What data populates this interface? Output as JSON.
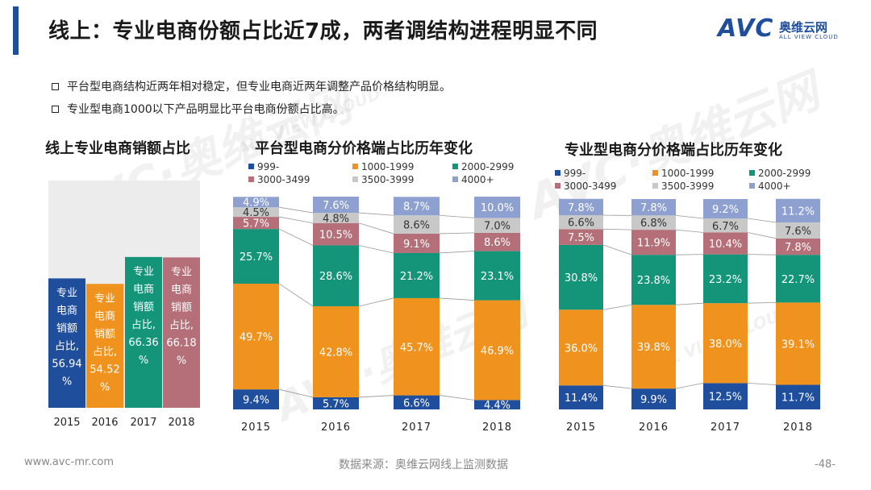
{
  "header": {
    "title": "线上：专业电商份额占比近7成，两者调结构进程明显不同",
    "logo": {
      "brand": "AVC",
      "name_cn": "奥维云网",
      "name_en": "ALL VIEW CLOUD"
    }
  },
  "bullets": [
    "平台型电商结构近两年相对稳定，但专业电商近两年调整产品价格结构明显。",
    "专业型电商1000以下产品明显比平台电商份额占比高。"
  ],
  "watermarks": [
    "AVC·奥维云网",
    "ALL VIEW CLOUD"
  ],
  "colors": {
    "title_bar": "#1f4e9c",
    "999-": "#1f4e9c",
    "1000-1999": "#f0931e",
    "2000-2999": "#14957a",
    "3000-3499": "#b56f79",
    "3500-3999": "#c8c8c8",
    "4000+": "#8ea0d0",
    "bar_background": "#ececec",
    "left_2015": "#1f4e9c",
    "left_2016": "#f0931e",
    "left_2017": "#14957a",
    "left_2018": "#b56f79"
  },
  "chart_data": [
    {
      "id": "share",
      "type": "bar",
      "title": "线上专业电商销额占比",
      "categories": [
        "2015",
        "2016",
        "2017",
        "2018"
      ],
      "values": [
        56.94,
        54.52,
        66.36,
        66.18
      ],
      "ylim": [
        0,
        100
      ],
      "labels": [
        "专业电商销额占比,56.94%",
        "专业电商销额占比,54.52%",
        "专业电商销额占比,66.36%",
        "专业电商销额占比,66.18%"
      ]
    },
    {
      "id": "platform",
      "type": "bar",
      "stacked": true,
      "title": "平台型电商分价格端占比历年变化",
      "categories": [
        "2015",
        "2016",
        "2017",
        "2018"
      ],
      "legend_position": "top",
      "series": [
        {
          "name": "999-",
          "values": [
            9.4,
            5.7,
            6.6,
            4.4
          ]
        },
        {
          "name": "1000-1999",
          "values": [
            49.7,
            42.8,
            45.7,
            46.9
          ]
        },
        {
          "name": "2000-2999",
          "values": [
            25.7,
            28.6,
            21.2,
            23.1
          ]
        },
        {
          "name": "3000-3499",
          "values": [
            5.7,
            10.5,
            9.1,
            8.6
          ]
        },
        {
          "name": "3500-3999",
          "values": [
            4.5,
            4.8,
            8.6,
            7.0
          ]
        },
        {
          "name": "4000+",
          "values": [
            4.9,
            7.6,
            8.7,
            10.0
          ]
        }
      ]
    },
    {
      "id": "specialist",
      "type": "bar",
      "stacked": true,
      "title": "专业型电商分价格端占比历年变化",
      "categories": [
        "2015",
        "2016",
        "2017",
        "2018"
      ],
      "legend_position": "top",
      "series": [
        {
          "name": "999-",
          "values": [
            11.4,
            9.9,
            12.5,
            11.7
          ]
        },
        {
          "name": "1000-1999",
          "values": [
            36.0,
            39.8,
            38.0,
            39.1
          ]
        },
        {
          "name": "2000-2999",
          "values": [
            30.8,
            23.8,
            23.2,
            22.7
          ]
        },
        {
          "name": "3000-3499",
          "values": [
            7.5,
            11.9,
            10.4,
            7.8
          ]
        },
        {
          "name": "3500-3999",
          "values": [
            6.6,
            6.8,
            6.7,
            7.6
          ]
        },
        {
          "name": "4000+",
          "values": [
            7.8,
            7.8,
            9.2,
            11.2
          ]
        }
      ]
    }
  ],
  "footer": {
    "url": "www.avc-mr.com",
    "source": "数据来源：奥维云网线上监测数据",
    "page": "-48-"
  }
}
